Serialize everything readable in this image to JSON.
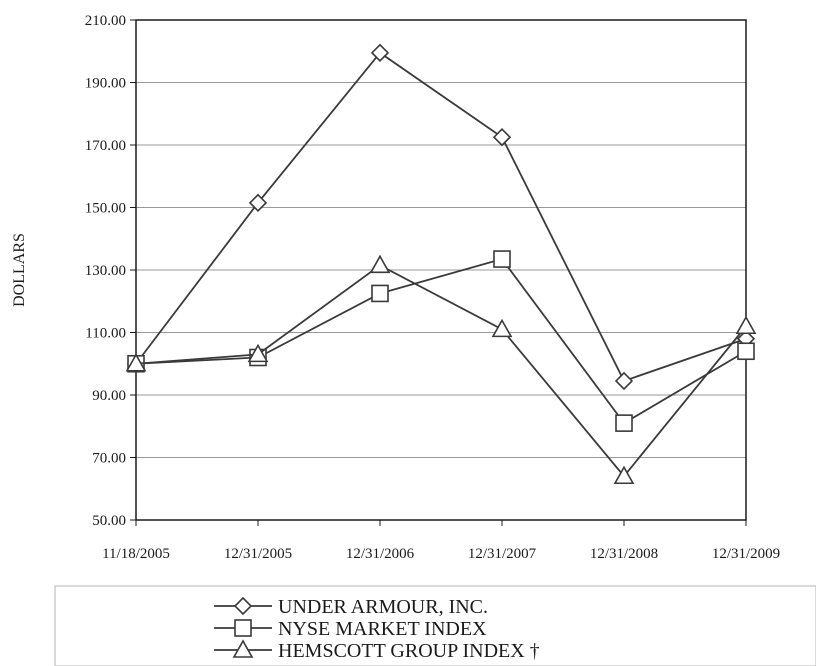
{
  "chart_data": {
    "type": "line",
    "ylabel": "DOLLARS",
    "xlabel": "",
    "ylim": [
      50,
      210
    ],
    "yticks": [
      "50.00",
      "70.00",
      "90.00",
      "110.00",
      "130.00",
      "150.00",
      "170.00",
      "190.00",
      "210.00"
    ],
    "categories": [
      "11/18/2005",
      "12/31/2005",
      "12/31/2006",
      "12/31/2007",
      "12/31/2008",
      "12/31/2009"
    ],
    "grid": "horizontal",
    "legend_position": "bottom",
    "series": [
      {
        "name": "UNDER ARMOUR, INC.",
        "marker": "diamond",
        "values": [
          100,
          151.5,
          199.5,
          172.5,
          94.5,
          108
        ]
      },
      {
        "name": "NYSE MARKET INDEX",
        "marker": "square",
        "values": [
          100,
          102,
          122.5,
          133.5,
          81,
          104
        ]
      },
      {
        "name": "HEMSCOTT GROUP INDEX †",
        "marker": "triangle",
        "values": [
          100,
          103,
          131.5,
          111,
          64,
          112
        ]
      }
    ],
    "colors": {
      "line": "#3a3a3a",
      "grid": "#9a9a9a",
      "axis": "#1a1a1a"
    }
  }
}
